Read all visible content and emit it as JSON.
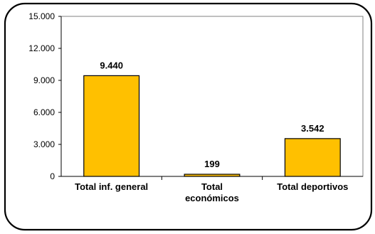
{
  "chart_data": {
    "type": "bar",
    "categories": [
      "Total inf. general",
      "Total económicos",
      "Total deportivos"
    ],
    "category_lines": [
      [
        "Total inf. general"
      ],
      [
        "Total",
        "económicos"
      ],
      [
        "Total deportivos"
      ]
    ],
    "values": [
      9440,
      199,
      3542
    ],
    "value_labels": [
      "9.440",
      "199",
      "3.542"
    ],
    "ylim": [
      0,
      15000
    ],
    "yticks": [
      0,
      3000,
      6000,
      9000,
      12000,
      15000
    ],
    "ytick_labels": [
      "0",
      "3.000",
      "6.000",
      "9.000",
      "12.000",
      "15.000"
    ],
    "grid": false,
    "legend": "none",
    "colors": {
      "bar": "#FFC000",
      "bar_stroke": "#000000",
      "plot_bg": "#FFFFFF",
      "frame": "#000000"
    }
  }
}
